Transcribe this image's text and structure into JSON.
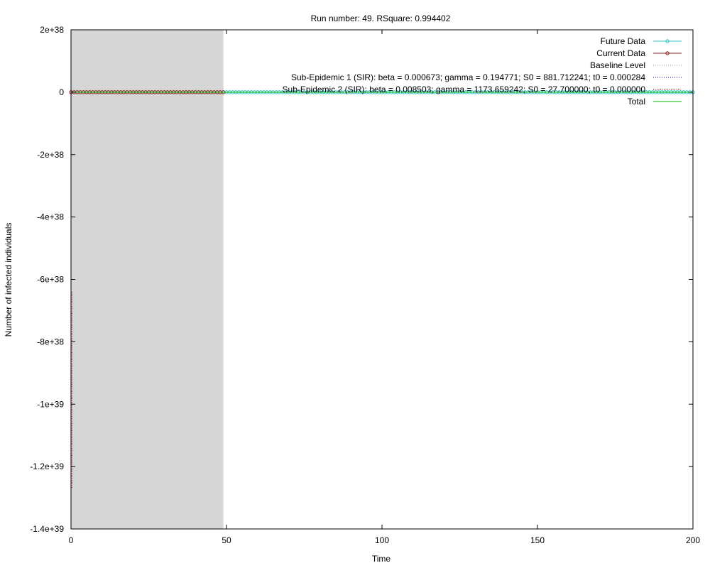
{
  "chart_data": {
    "type": "line",
    "title": "Run number: 49. RSquare: 0.994402",
    "xlabel": "Time",
    "ylabel": "Number of infected individuals",
    "xlim": [
      0,
      200
    ],
    "ylim": [
      -1.4e+39,
      2e+38
    ],
    "grid": false,
    "legend_position": "top-right",
    "x_ticks": [
      0,
      50,
      100,
      150,
      200
    ],
    "x_tick_labels": [
      "0",
      "50",
      "100",
      "150",
      "200"
    ],
    "y_ticks": [
      2e+38,
      0,
      -2e+38,
      -4e+38,
      -6e+38,
      -8e+38,
      -1e+39,
      -1.2e+39,
      -1.4e+39
    ],
    "y_tick_labels": [
      "2e+38",
      "0",
      "-2e+38",
      "-4e+38",
      "-6e+38",
      "-8e+38",
      "-1e+39",
      "-1.2e+39",
      "-1.4e+39"
    ],
    "shaded_region": {
      "x0": 0,
      "x1": 49,
      "color": "#d6d6d6"
    },
    "colors": {
      "future": "#2ec4c4",
      "current": "#8b2020",
      "baseline": "#a0a0a0",
      "sub1": "#00008b",
      "sub2": "#b02020",
      "total": "#00c000"
    },
    "series": [
      {
        "name": "Future Data",
        "style": "line-points",
        "x_range": [
          49,
          200
        ],
        "step": 1,
        "y_constant": 0
      },
      {
        "name": "Current Data",
        "style": "line-points",
        "x_range": [
          0,
          49
        ],
        "step": 1,
        "y_constant": 0
      },
      {
        "name": "Baseline Level",
        "style": "dotted",
        "x": [
          0,
          200
        ],
        "y": [
          0,
          0
        ]
      },
      {
        "name": "Sub-Epidemic 1 (SIR): beta = 0.000673; gamma = 0.194771; S0 = 881.712241; t0 = 0.000284",
        "style": "dotted",
        "x": [
          0,
          200
        ],
        "y": [
          0,
          0
        ]
      },
      {
        "name": "Sub-Epidemic 2 (SIR): beta = 0.008503; gamma = 1173.659242; S0 = 27.700000; t0 = 0.000000",
        "style": "dotted",
        "x": [
          0.3,
          0.3
        ],
        "y": [
          -6.4e+38,
          -1.27e+39
        ]
      },
      {
        "name": "Total",
        "style": "line",
        "x": [
          0,
          200
        ],
        "y": [
          0,
          0
        ]
      }
    ]
  }
}
